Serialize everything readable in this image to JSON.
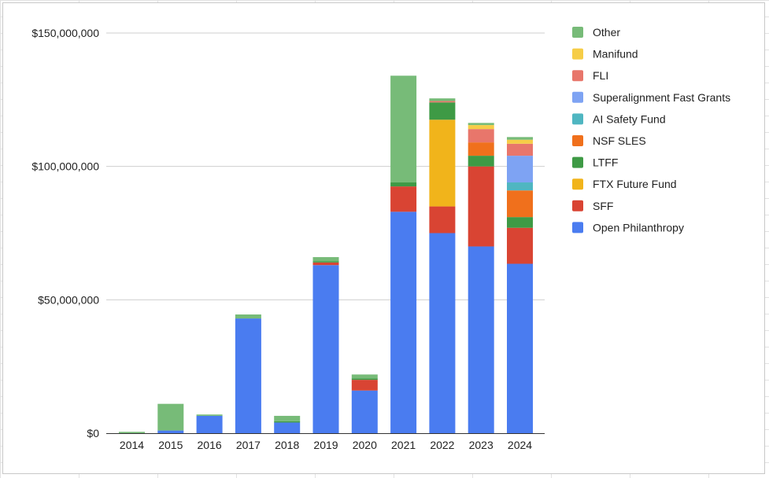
{
  "chart_data": {
    "type": "bar",
    "stacked": true,
    "categories": [
      "2014",
      "2015",
      "2016",
      "2017",
      "2018",
      "2019",
      "2020",
      "2021",
      "2022",
      "2023",
      "2024"
    ],
    "ylim": [
      0,
      150000000
    ],
    "yticks": [
      0,
      50000000,
      100000000,
      150000000
    ],
    "ytick_labels": [
      "$0",
      "$50,000,000",
      "$100,000,000",
      "$150,000,000"
    ],
    "grid": true,
    "legend_position": "right",
    "series": [
      {
        "name": "Open Philanthropy",
        "color": "#4a7cf0",
        "values": [
          0,
          1000000,
          6500000,
          43000000,
          4000000,
          63000000,
          16000000,
          83000000,
          75000000,
          70000000,
          63500000
        ]
      },
      {
        "name": "SFF",
        "color": "#d94433",
        "values": [
          0,
          0,
          0,
          0,
          0,
          1000000,
          4000000,
          9500000,
          10000000,
          30000000,
          13500000
        ]
      },
      {
        "name": "FTX Future Fund",
        "color": "#f1b41b",
        "values": [
          0,
          0,
          0,
          0,
          0,
          0,
          0,
          0,
          32500000,
          0,
          0
        ]
      },
      {
        "name": "LTFF",
        "color": "#3e9a45",
        "values": [
          0,
          0,
          0,
          0,
          500000,
          500000,
          500000,
          1500000,
          6500000,
          4000000,
          4000000
        ]
      },
      {
        "name": "NSF SLES",
        "color": "#f0701c",
        "values": [
          0,
          0,
          0,
          0,
          0,
          0,
          0,
          0,
          0,
          5000000,
          10000000
        ]
      },
      {
        "name": "AI Safety Fund",
        "color": "#4fb6c1",
        "values": [
          0,
          0,
          0,
          0,
          0,
          0,
          0,
          0,
          0,
          0,
          3000000
        ]
      },
      {
        "name": "Superalignment Fast Grants",
        "color": "#7ea3f3",
        "values": [
          0,
          0,
          0,
          0,
          0,
          0,
          0,
          0,
          0,
          0,
          10000000
        ]
      },
      {
        "name": "FLI",
        "color": "#e8766b",
        "values": [
          0,
          0,
          0,
          0,
          0,
          0,
          0,
          0,
          500000,
          5000000,
          4500000
        ]
      },
      {
        "name": "Manifund",
        "color": "#f6cd47",
        "values": [
          0,
          0,
          0,
          0,
          0,
          0,
          0,
          0,
          0,
          1500000,
          1500000
        ]
      },
      {
        "name": "Other",
        "color": "#77bb78",
        "values": [
          500000,
          10000000,
          500000,
          1500000,
          2000000,
          1500000,
          1500000,
          40000000,
          1000000,
          800000,
          1000000
        ]
      }
    ]
  }
}
